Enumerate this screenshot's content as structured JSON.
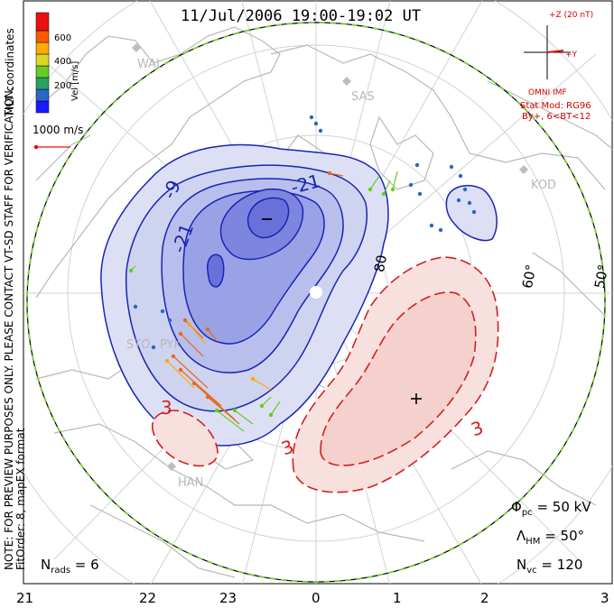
{
  "header": {
    "title": "11/Jul/2006 19:00-19:02 UT"
  },
  "imf": {
    "bz_label": "+Z (20 nT)",
    "by_label": "+Y",
    "source": "OMNI IMF",
    "stat_mod_line1": "Stat Mod: RG96",
    "stat_mod_line2": "By+, 6<BT<12"
  },
  "colorbar": {
    "title": "Vel [m/s]",
    "ticks": [
      "600",
      "400",
      "200"
    ],
    "colors": [
      "#1a1aff",
      "#2a66c8",
      "#2aa064",
      "#66cc22",
      "#ddd622",
      "#ffaa00",
      "#ff5a00",
      "#e81010"
    ]
  },
  "coords_label": "MLT coordinates",
  "scale_label": "1000 m/s",
  "note_line1": "NOTE: FOR PREVIEW PURPOSES ONLY. PLEASE CONTACT VT-SD STAFF FOR VERIFICATION.",
  "note_line2": "FitOrder: 8, mapEX format",
  "sites": [
    "WAL",
    "SAS",
    "KOD",
    "STO",
    "PYK",
    "HAN"
  ],
  "latitude_labels": [
    "80",
    "60°",
    "50°"
  ],
  "contour_labels": {
    "negative": [
      "-9",
      "-21",
      "-21",
      "-"
    ],
    "positive": [
      "3",
      "3",
      "3",
      "+"
    ]
  },
  "parameters": {
    "phi_pc": "Φpc = 50 kV",
    "phi_pc_value": "50 kV",
    "lambda_hm_value": "50°",
    "n_vc_value": "120",
    "n_rads_value": "6"
  },
  "param_symbols": {
    "phi": "Φ",
    "phi_sub": "pc",
    "lambda": "Λ",
    "lambda_sub": "HM",
    "nvc": "N",
    "nvc_sub": "vc",
    "nrads": "N",
    "nrads_sub": "rads"
  },
  "mlt_axis": [
    "21",
    "22",
    "23",
    "0",
    "1",
    "2",
    "3"
  ],
  "colors": {
    "negative_contour": "#1a24b4",
    "positive_contour": "#d42020",
    "negative_fill": "#c8cdf0",
    "positive_fill": "#f6d9d6",
    "boundary_green": "#7ccf3c",
    "land": "#b8b8b8"
  }
}
